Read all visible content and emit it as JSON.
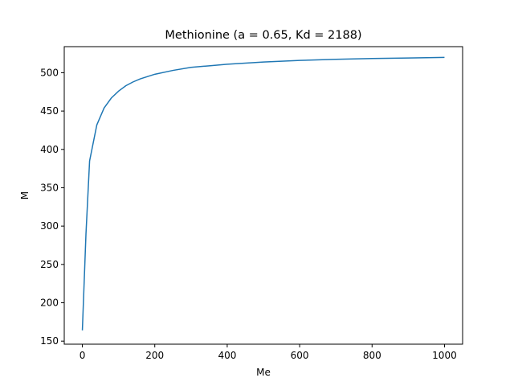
{
  "chart_data": {
    "type": "line",
    "title": "Methionine (a = 0.65, Kd = 2188)",
    "xlabel": "Me",
    "ylabel": "M",
    "xlim": [
      -50,
      1050
    ],
    "ylim": [
      146,
      534
    ],
    "xticks": [
      0,
      200,
      400,
      600,
      800,
      1000
    ],
    "yticks": [
      150,
      200,
      250,
      300,
      350,
      400,
      450,
      500
    ],
    "grid": false,
    "line_color": "#1f77b4",
    "series": [
      {
        "x": [
          0,
          10,
          20,
          40,
          60,
          80,
          100,
          120,
          140,
          160,
          180,
          200,
          250,
          300,
          350,
          400,
          450,
          500,
          600,
          700,
          800,
          900,
          1000
        ],
        "y": [
          164,
          290,
          385,
          432,
          454,
          467,
          476,
          483,
          488,
          492,
          495,
          498,
          503,
          507,
          509,
          511,
          512.5,
          514,
          516,
          517.5,
          518.5,
          519.2,
          520
        ]
      }
    ]
  }
}
